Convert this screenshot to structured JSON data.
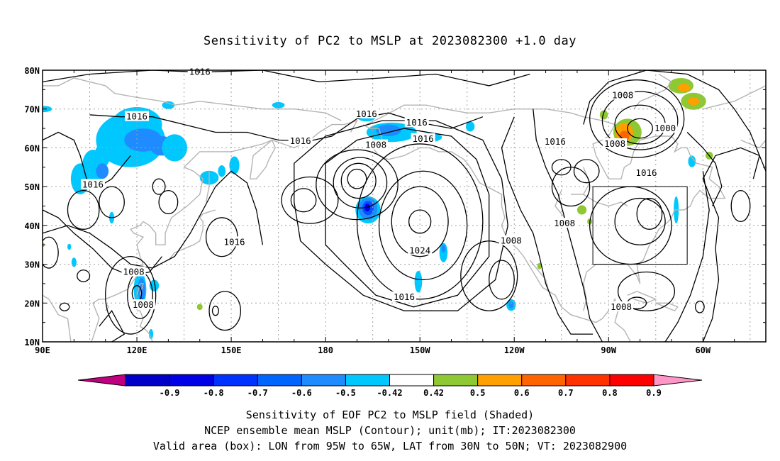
{
  "title": "Sensitivity of PC2 to MSLP at 2023082300 +1.0 day",
  "lat_labels": [
    "80N",
    "70N",
    "60N",
    "50N",
    "40N",
    "30N",
    "20N",
    "10N"
  ],
  "lon_labels": [
    "90E",
    "120E",
    "150E",
    "180",
    "150W",
    "120W",
    "90W",
    "60W"
  ],
  "contour_labels": [
    {
      "text": "1016",
      "lat": 79.5,
      "lon": 140
    },
    {
      "text": "1016",
      "lat": 68,
      "lon": 120
    },
    {
      "text": "1016",
      "lat": 50.5,
      "lon": 106
    },
    {
      "text": "1016",
      "lat": 68.7,
      "lon": 193
    },
    {
      "text": "1016",
      "lat": 66.5,
      "lon": 209
    },
    {
      "text": "1016",
      "lat": 61.7,
      "lon": 172
    },
    {
      "text": "1016",
      "lat": 62.3,
      "lon": 211
    },
    {
      "text": "1008",
      "lat": 60.7,
      "lon": 196
    },
    {
      "text": "1016",
      "lat": 35.7,
      "lon": 151
    },
    {
      "text": "1024",
      "lat": 33.5,
      "lon": 210
    },
    {
      "text": "1016",
      "lat": 21.5,
      "lon": 205
    },
    {
      "text": "1008",
      "lat": 28,
      "lon": 119
    },
    {
      "text": "1008",
      "lat": 19.5,
      "lon": 122
    },
    {
      "text": "1008",
      "lat": 73.5,
      "lon": 274.5
    },
    {
      "text": "1000",
      "lat": 65,
      "lon": 288
    },
    {
      "text": "1008",
      "lat": 61,
      "lon": 272
    },
    {
      "text": "1016",
      "lat": 61.5,
      "lon": 253
    },
    {
      "text": "1016",
      "lat": 53.5,
      "lon": 282
    },
    {
      "text": "1008",
      "lat": 40.5,
      "lon": 256
    },
    {
      "text": "1008",
      "lat": 36,
      "lon": 239
    },
    {
      "text": "1008",
      "lat": 19,
      "lon": 274
    }
  ],
  "valid_box": {
    "lon_min": 265,
    "lon_max": 295,
    "lat_min": 30,
    "lat_max": 50
  },
  "shaded": [
    {
      "lon": 102,
      "lat": 52,
      "rx": 3,
      "ry": 4,
      "color": "#00c8ff"
    },
    {
      "lon": 106,
      "lat": 55,
      "rx": 3.5,
      "ry": 4.5,
      "color": "#00c8ff"
    },
    {
      "lon": 109,
      "lat": 58,
      "rx": 2.5,
      "ry": 3,
      "color": "#00c8ff"
    },
    {
      "lon": 118,
      "lat": 62,
      "rx": 11,
      "ry": 7,
      "color": "#00c8ff"
    },
    {
      "lon": 120,
      "lat": 66,
      "rx": 8,
      "ry": 4.5,
      "color": "#00c8ff"
    },
    {
      "lon": 122,
      "lat": 62,
      "rx": 6,
      "ry": 3,
      "color": "#1e8cff"
    },
    {
      "lon": 128,
      "lat": 60.5,
      "rx": 4,
      "ry": 2.5,
      "color": "#1e8cff"
    },
    {
      "lon": 109,
      "lat": 54,
      "rx": 2,
      "ry": 2,
      "color": "#1e8cff"
    },
    {
      "lon": 132,
      "lat": 60,
      "rx": 4,
      "ry": 3.5,
      "color": "#00c8ff"
    },
    {
      "lon": 90.5,
      "lat": 70,
      "rx": 2.5,
      "ry": 0.8,
      "color": "#00c8ff"
    },
    {
      "lon": 130,
      "lat": 71,
      "rx": 2,
      "ry": 1,
      "color": "#00c8ff"
    },
    {
      "lon": 143,
      "lat": 52.3,
      "rx": 3,
      "ry": 1.8,
      "color": "#00c8ff"
    },
    {
      "lon": 147,
      "lat": 54,
      "rx": 1.2,
      "ry": 1.5,
      "color": "#00c8ff"
    },
    {
      "lon": 151,
      "lat": 55.5,
      "rx": 1.6,
      "ry": 2.3,
      "color": "#00c8ff"
    },
    {
      "lon": 112,
      "lat": 42,
      "rx": 0.8,
      "ry": 1.5,
      "color": "#00c8ff"
    },
    {
      "lon": 98.5,
      "lat": 34.5,
      "rx": 0.6,
      "ry": 0.8,
      "color": "#00c8ff"
    },
    {
      "lon": 100,
      "lat": 30.5,
      "rx": 0.8,
      "ry": 1.2,
      "color": "#00c8ff"
    },
    {
      "lon": 165,
      "lat": 71,
      "rx": 2,
      "ry": 0.8,
      "color": "#00c8ff"
    },
    {
      "lon": 193,
      "lat": 68,
      "rx": 3,
      "ry": 1.2,
      "color": "#00c8ff"
    },
    {
      "lon": 201,
      "lat": 64,
      "rx": 8,
      "ry": 2.5,
      "color": "#00c8ff"
    },
    {
      "lon": 200,
      "lat": 64.5,
      "rx": 4,
      "ry": 1.5,
      "color": "#1e8cff"
    },
    {
      "lon": 213,
      "lat": 62.7,
      "rx": 4,
      "ry": 1.2,
      "color": "#00c8ff"
    },
    {
      "lon": 226,
      "lat": 65.5,
      "rx": 1.4,
      "ry": 1.3,
      "color": "#00c8ff"
    },
    {
      "lon": 193.5,
      "lat": 44,
      "rx": 4,
      "ry": 3.5,
      "color": "#00c8ff"
    },
    {
      "lon": 193.5,
      "lat": 44.3,
      "rx": 3,
      "ry": 2.8,
      "color": "#1e8cff"
    },
    {
      "lon": 193.5,
      "lat": 44.5,
      "rx": 1.8,
      "ry": 1.8,
      "color": "#0050ff"
    },
    {
      "lon": 193.3,
      "lat": 44.6,
      "rx": 0.9,
      "ry": 1,
      "color": "#0000e6"
    },
    {
      "lon": 217.5,
      "lat": 33,
      "rx": 1.3,
      "ry": 2.5,
      "color": "#00c8ff"
    },
    {
      "lon": 217.5,
      "lat": 34,
      "rx": 0.7,
      "ry": 1,
      "color": "#1e8cff"
    },
    {
      "lon": 209.5,
      "lat": 25.5,
      "rx": 1.2,
      "ry": 2.8,
      "color": "#00c8ff"
    },
    {
      "lon": 239,
      "lat": 19.5,
      "rx": 1.5,
      "ry": 1.5,
      "color": "#00c8ff"
    },
    {
      "lon": 239,
      "lat": 19.5,
      "rx": 0.8,
      "ry": 0.9,
      "color": "#1e8cff"
    },
    {
      "lon": 121,
      "lat": 23.5,
      "rx": 2,
      "ry": 4.5,
      "color": "#00c8ff"
    },
    {
      "lon": 121.5,
      "lat": 23.5,
      "rx": 1.2,
      "ry": 3,
      "color": "#1e8cff"
    },
    {
      "lon": 121.5,
      "lat": 20,
      "rx": 0.8,
      "ry": 1.5,
      "color": "#0050ff"
    },
    {
      "lon": 125.5,
      "lat": 24.5,
      "rx": 1.5,
      "ry": 1.5,
      "color": "#00c8ff"
    },
    {
      "lon": 124.5,
      "lat": 12,
      "rx": 0.7,
      "ry": 1.3,
      "color": "#00c8ff"
    },
    {
      "lon": 291.5,
      "lat": 44,
      "rx": 0.8,
      "ry": 3.5,
      "color": "#00c8ff"
    },
    {
      "lon": 296.5,
      "lat": 56.5,
      "rx": 1.2,
      "ry": 1.5,
      "color": "#00c8ff"
    },
    {
      "lon": 268.5,
      "lat": 68.5,
      "rx": 1.3,
      "ry": 1.2,
      "color": "#8ec832"
    },
    {
      "lon": 276,
      "lat": 64,
      "rx": 4.5,
      "ry": 3.5,
      "color": "#8ec832"
    },
    {
      "lon": 275,
      "lat": 64,
      "rx": 2.8,
      "ry": 2.4,
      "color": "#ffa000"
    },
    {
      "lon": 275,
      "lat": 63,
      "rx": 1.6,
      "ry": 1.4,
      "color": "#ff6400"
    },
    {
      "lon": 293,
      "lat": 76,
      "rx": 4,
      "ry": 2,
      "color": "#8ec832"
    },
    {
      "lon": 297,
      "lat": 72,
      "rx": 4,
      "ry": 2.2,
      "color": "#8ec832"
    },
    {
      "lon": 294,
      "lat": 75.5,
      "rx": 2,
      "ry": 1,
      "color": "#ffa000"
    },
    {
      "lon": 297,
      "lat": 72,
      "rx": 1.8,
      "ry": 1,
      "color": "#ffa000"
    },
    {
      "lon": 302,
      "lat": 58,
      "rx": 1.2,
      "ry": 1,
      "color": "#8ec832"
    },
    {
      "lon": 261.5,
      "lat": 44,
      "rx": 1.5,
      "ry": 1.2,
      "color": "#8ec832"
    },
    {
      "lon": 264,
      "lat": 41,
      "rx": 0.8,
      "ry": 0.8,
      "color": "#8ec832"
    },
    {
      "lon": 248,
      "lat": 29.5,
      "rx": 0.7,
      "ry": 0.8,
      "color": "#8ec832"
    },
    {
      "lon": 140,
      "lat": 19,
      "rx": 0.9,
      "ry": 0.8,
      "color": "#8ec832"
    },
    {
      "lon": 90.3,
      "lat": 35,
      "rx": 0.3,
      "ry": 0.5,
      "color": "#8ec832"
    }
  ],
  "colorbar": {
    "colors": [
      "#c00080",
      "#0000c8",
      "#0000e6",
      "#0032ff",
      "#0064ff",
      "#1e8cff",
      "#00c8ff",
      "#ffffff",
      "#8ec832",
      "#ffa000",
      "#ff6400",
      "#ff3200",
      "#ff0000",
      "#ff96c8"
    ],
    "labels": [
      "-0.9",
      "-0.8",
      "-0.7",
      "-0.6",
      "-0.5",
      "-0.42",
      "0.42",
      "0.5",
      "0.6",
      "0.7",
      "0.8",
      "0.9"
    ]
  },
  "caption": [
    "Sensitivity of EOF PC2 to MSLP field (Shaded)",
    "NCEP ensemble mean MSLP (Contour); unit(mb); IT:2023082300",
    "Valid area (box): LON from 95W to 65W, LAT from 30N to 50N; VT: 2023082900"
  ]
}
